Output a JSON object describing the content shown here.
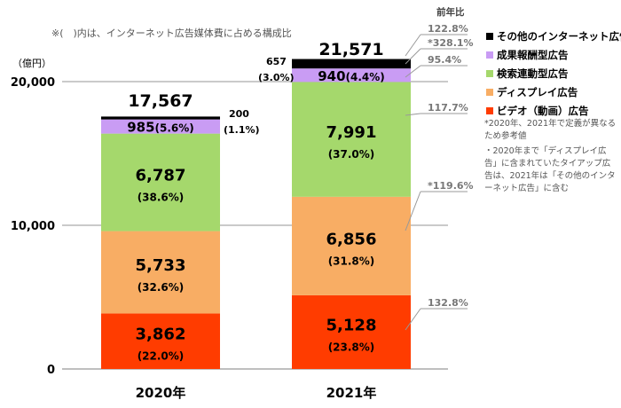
{
  "header_note": "※(　)内は、インターネット広告媒体費に占める構成比",
  "unit_label": "（億円）",
  "yoy_header": "前年比",
  "side_notes": [
    "*2020年、2021年で定義が異なるため参考値",
    "・2020年まで「ディスプレイ広告」に含まれていたタイアップ広告は、2021年は「その他のインターネット広告」に含む"
  ],
  "colors": {
    "other": "#000000",
    "performance": "#C99CF4",
    "search": "#A5D86C",
    "display": "#F8AD64",
    "video": "#FF3C00"
  },
  "chart_data": {
    "type": "bar",
    "stacked": true,
    "categories": [
      "2020年",
      "2021年"
    ],
    "ylim": [
      0,
      20000
    ],
    "yticks": [
      0,
      10000,
      20000
    ],
    "ytick_labels": [
      "0",
      "10,000",
      "20,000"
    ],
    "grid": true,
    "legend_position": "top-right",
    "totals": [
      "17,567",
      "21,571"
    ],
    "series": [
      {
        "key": "video",
        "name": "ビデオ（動画）広告",
        "values": [
          3862,
          5128
        ],
        "value_labels": [
          "3,862",
          "5,128"
        ],
        "share_labels": [
          "(22.0%)",
          "(23.8%)"
        ],
        "yoy": "132.8%"
      },
      {
        "key": "display",
        "name": "ディスプレイ広告",
        "values": [
          5733,
          6856
        ],
        "value_labels": [
          "5,733",
          "6,856"
        ],
        "share_labels": [
          "(32.6%)",
          "(31.8%)"
        ],
        "yoy": "*119.6%"
      },
      {
        "key": "search",
        "name": "検索連動型広告",
        "values": [
          6787,
          7991
        ],
        "value_labels": [
          "6,787",
          "7,991"
        ],
        "share_labels": [
          "(38.6%)",
          "(37.0%)"
        ],
        "yoy": "117.7%"
      },
      {
        "key": "performance",
        "name": "成果報酬型広告",
        "values": [
          985,
          940
        ],
        "value_labels": [
          "985",
          "940"
        ],
        "share_labels": [
          "(5.6%)",
          "(4.4%)"
        ],
        "yoy": "95.4%"
      },
      {
        "key": "other",
        "name": "その他のインターネット広告",
        "values": [
          200,
          657
        ],
        "value_labels": [
          "200",
          "657"
        ],
        "share_labels": [
          "(1.1%)",
          "(3.0%)"
        ],
        "yoy": "*328.1%"
      }
    ],
    "total_yoy": "122.8%"
  }
}
